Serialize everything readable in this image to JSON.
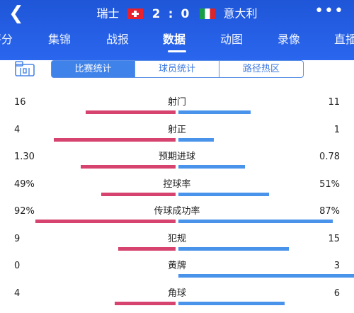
{
  "header": {
    "back_icon": "back-chevron-icon",
    "home_team": "瑞士",
    "away_team": "意大利",
    "home_score": "2",
    "separator": ":",
    "away_score": "0",
    "more_icon": "more-dots-icon",
    "tabs": [
      {
        "label": "评分"
      },
      {
        "label": "集锦"
      },
      {
        "label": "战报"
      },
      {
        "label": "数据",
        "active": true
      },
      {
        "label": "动图"
      },
      {
        "label": "录像"
      },
      {
        "label": "直播"
      }
    ]
  },
  "subbar": {
    "icon": "stats-panel-icon",
    "segments": [
      {
        "label": "比赛统计",
        "active": true
      },
      {
        "label": "球员统计"
      },
      {
        "label": "路径热区"
      }
    ]
  },
  "colors": {
    "home": "#d6436f",
    "away": "#4a93ea",
    "header": "#2a66ee"
  },
  "stats": [
    {
      "label": "射门",
      "home": "16",
      "away": "11",
      "home_share": 0.593,
      "away_share": 0.407
    },
    {
      "label": "射正",
      "home": "4",
      "away": "1",
      "home_share": 0.8,
      "away_share": 0.2
    },
    {
      "label": "预期进球",
      "home": "1.30",
      "away": "0.78",
      "home_share": 0.625,
      "away_share": 0.375
    },
    {
      "label": "控球率",
      "home": "49%",
      "away": "51%",
      "home_share": 0.49,
      "away_share": 0.51
    },
    {
      "label": "传球成功率",
      "home": "92%",
      "away": "87%",
      "home_share": 0.92,
      "away_share": 0.87
    },
    {
      "label": "犯规",
      "home": "9",
      "away": "15",
      "home_share": 0.375,
      "away_share": 0.625
    },
    {
      "label": "黄牌",
      "home": "0",
      "away": "3",
      "home_share": 0.0,
      "away_share": 1.0
    },
    {
      "label": "角球",
      "home": "4",
      "away": "6",
      "home_share": 0.4,
      "away_share": 0.6
    }
  ]
}
